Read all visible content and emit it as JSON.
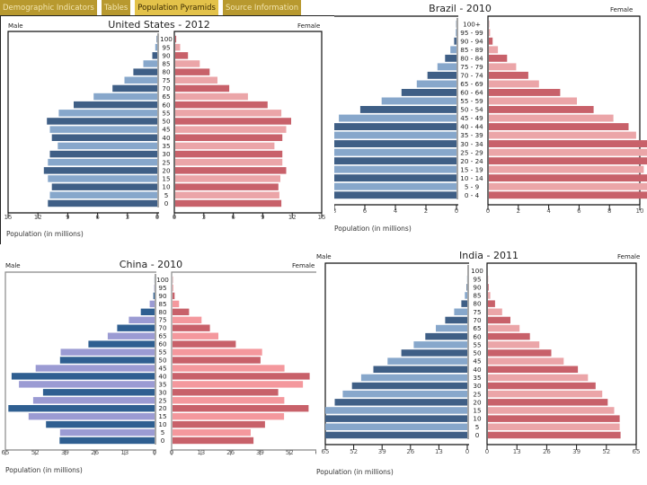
{
  "tabs": [
    {
      "label": "Demographic Indicators",
      "active": false
    },
    {
      "label": "Tables",
      "active": false
    },
    {
      "label": "Population Pyramids",
      "active": true
    },
    {
      "label": "Source Information",
      "active": false
    }
  ],
  "colors": {
    "male_dark": "#3f5f86",
    "male_light": "#87a7cb",
    "female_dark": "#c8616a",
    "female_light": "#eba5a8",
    "china_male_dark": "#2f5f91",
    "china_male_light": "#9b9bd3",
    "china_female_dark": "#c8616a",
    "china_female_light": "#f4989d",
    "tab_bg": "#b8992f",
    "tab_active_bg": "#e3c24a"
  },
  "chart_data": [
    {
      "type": "bar",
      "orientation": "pyramid",
      "title": "United States - 2012",
      "left_label": "Male",
      "right_label": "Female",
      "xlabel": "Population (in millions)",
      "xlim": [
        0,
        15
      ],
      "ticks_left": [
        "15",
        "12",
        "9",
        "6",
        "3",
        "0"
      ],
      "ticks_right": [
        "0",
        "3",
        "6",
        "9",
        "12",
        "15"
      ],
      "categories": [
        "100",
        "95",
        "90",
        "85",
        "80",
        "75",
        "70",
        "65",
        "60",
        "55",
        "50",
        "45",
        "40",
        "35",
        "30",
        "25",
        "20",
        "15",
        "10",
        "5",
        "0"
      ],
      "series": [
        {
          "name": "Male",
          "values": [
            0.05,
            0.2,
            0.5,
            1.4,
            2.4,
            3.3,
            4.5,
            6.4,
            8.4,
            9.9,
            11.1,
            10.8,
            10.6,
            10.0,
            10.8,
            11.0,
            11.4,
            11.0,
            10.6,
            10.8,
            11.0
          ]
        },
        {
          "name": "Female",
          "values": [
            0.1,
            0.5,
            1.3,
            2.5,
            3.5,
            4.3,
            5.5,
            7.4,
            9.4,
            10.8,
            11.8,
            11.3,
            10.9,
            10.1,
            10.9,
            10.9,
            11.3,
            10.7,
            10.5,
            10.6,
            10.8
          ]
        }
      ]
    },
    {
      "type": "bar",
      "orientation": "pyramid",
      "title": "Brazil - 2010",
      "left_label": "Male",
      "right_label": "Female",
      "xlabel": "Population (in millions)",
      "xlim": [
        0,
        10
      ],
      "ticks_left": [
        "8",
        "6",
        "4",
        "2",
        "0"
      ],
      "ticks_right": [
        "0",
        "2",
        "4",
        "6",
        "8",
        "10"
      ],
      "categories": [
        "100+",
        "95 - 99",
        "90 - 94",
        "85 - 89",
        "80 - 84",
        "75 - 79",
        "70 - 74",
        "65 - 69",
        "60 - 64",
        "55 - 59",
        "50 - 54",
        "45 - 49",
        "40 - 44",
        "35 - 39",
        "30 - 34",
        "25 - 29",
        "20 - 24",
        "15 - 19",
        "10 - 14",
        "5 - 9",
        "0 - 4"
      ],
      "series": [
        {
          "name": "Male",
          "values": [
            0.02,
            0.05,
            0.15,
            0.4,
            0.75,
            1.25,
            1.9,
            2.6,
            3.6,
            4.9,
            6.3,
            7.7,
            8.9,
            9.8,
            10.2,
            10.3,
            10.3,
            10.4,
            10.3,
            10.3,
            10.3
          ]
        },
        {
          "name": "Female",
          "values": [
            0.02,
            0.08,
            0.25,
            0.6,
            1.2,
            1.8,
            2.6,
            3.3,
            4.7,
            5.8,
            6.9,
            8.2,
            9.2,
            9.7,
            10.5,
            10.9,
            10.8,
            10.2,
            10.7,
            10.9,
            10.9
          ]
        }
      ]
    },
    {
      "type": "bar",
      "orientation": "pyramid",
      "title": "China - 2010",
      "left_label": "Male",
      "right_label": "Female",
      "xlabel": "Population (in millions)",
      "xlim": [
        0,
        65
      ],
      "ticks_left": [
        "65",
        "52",
        "39",
        "26",
        "13",
        "0"
      ],
      "ticks_right": [
        "0",
        "13",
        "26",
        "39",
        "52",
        "65"
      ],
      "categories": [
        "100",
        "95",
        "90",
        "85",
        "80",
        "75",
        "70",
        "65",
        "60",
        "55",
        "50",
        "45",
        "40",
        "35",
        "30",
        "25",
        "20",
        "15",
        "10",
        "5",
        "0"
      ],
      "series": [
        {
          "name": "Male",
          "values": [
            0.05,
            0.15,
            0.5,
            2.1,
            6.0,
            11.2,
            16.3,
            20.4,
            28.8,
            40.9,
            41.2,
            51.8,
            62.3,
            59.1,
            48.6,
            52.9,
            63.7,
            54.9,
            47.3,
            41.2,
            41.4
          ]
        },
        {
          "name": "Female",
          "values": [
            0.1,
            0.3,
            0.9,
            2.9,
            7.3,
            12.8,
            16.5,
            20.2,
            27.9,
            39.5,
            38.8,
            49.4,
            60.5,
            57.5,
            46.6,
            49.3,
            60.0,
            49.2,
            40.8,
            34.5,
            35.7
          ]
        }
      ]
    },
    {
      "type": "bar",
      "orientation": "pyramid",
      "title": "India - 2011",
      "left_label": "Male",
      "right_label": "Female",
      "xlabel": "Population (in millions)",
      "xlim": [
        0,
        65
      ],
      "ticks_left": [
        "65",
        "52",
        "39",
        "26",
        "13",
        "0"
      ],
      "ticks_right": [
        "0",
        "13",
        "26",
        "39",
        "52",
        "65"
      ],
      "categories": [
        "100",
        "95",
        "90",
        "85",
        "80",
        "75",
        "70",
        "65",
        "60",
        "55",
        "50",
        "45",
        "40",
        "35",
        "30",
        "25",
        "20",
        "15",
        "10",
        "5",
        "0"
      ],
      "series": [
        {
          "name": "Male",
          "values": [
            0.0,
            0.1,
            0.3,
            1.1,
            2.7,
            6.0,
            10.1,
            14.4,
            19.2,
            24.5,
            30.2,
            36.5,
            43.0,
            48.6,
            52.8,
            57.0,
            60.7,
            65.0,
            65.0,
            65.0,
            65.0
          ]
        },
        {
          "name": "Female",
          "values": [
            0.0,
            0.1,
            0.3,
            1.0,
            3.1,
            6.2,
            9.8,
            13.8,
            18.3,
            22.4,
            27.6,
            33.0,
            39.2,
            43.6,
            46.9,
            49.8,
            52.2,
            55.0,
            57.4,
            57.4,
            57.8
          ]
        }
      ]
    }
  ]
}
